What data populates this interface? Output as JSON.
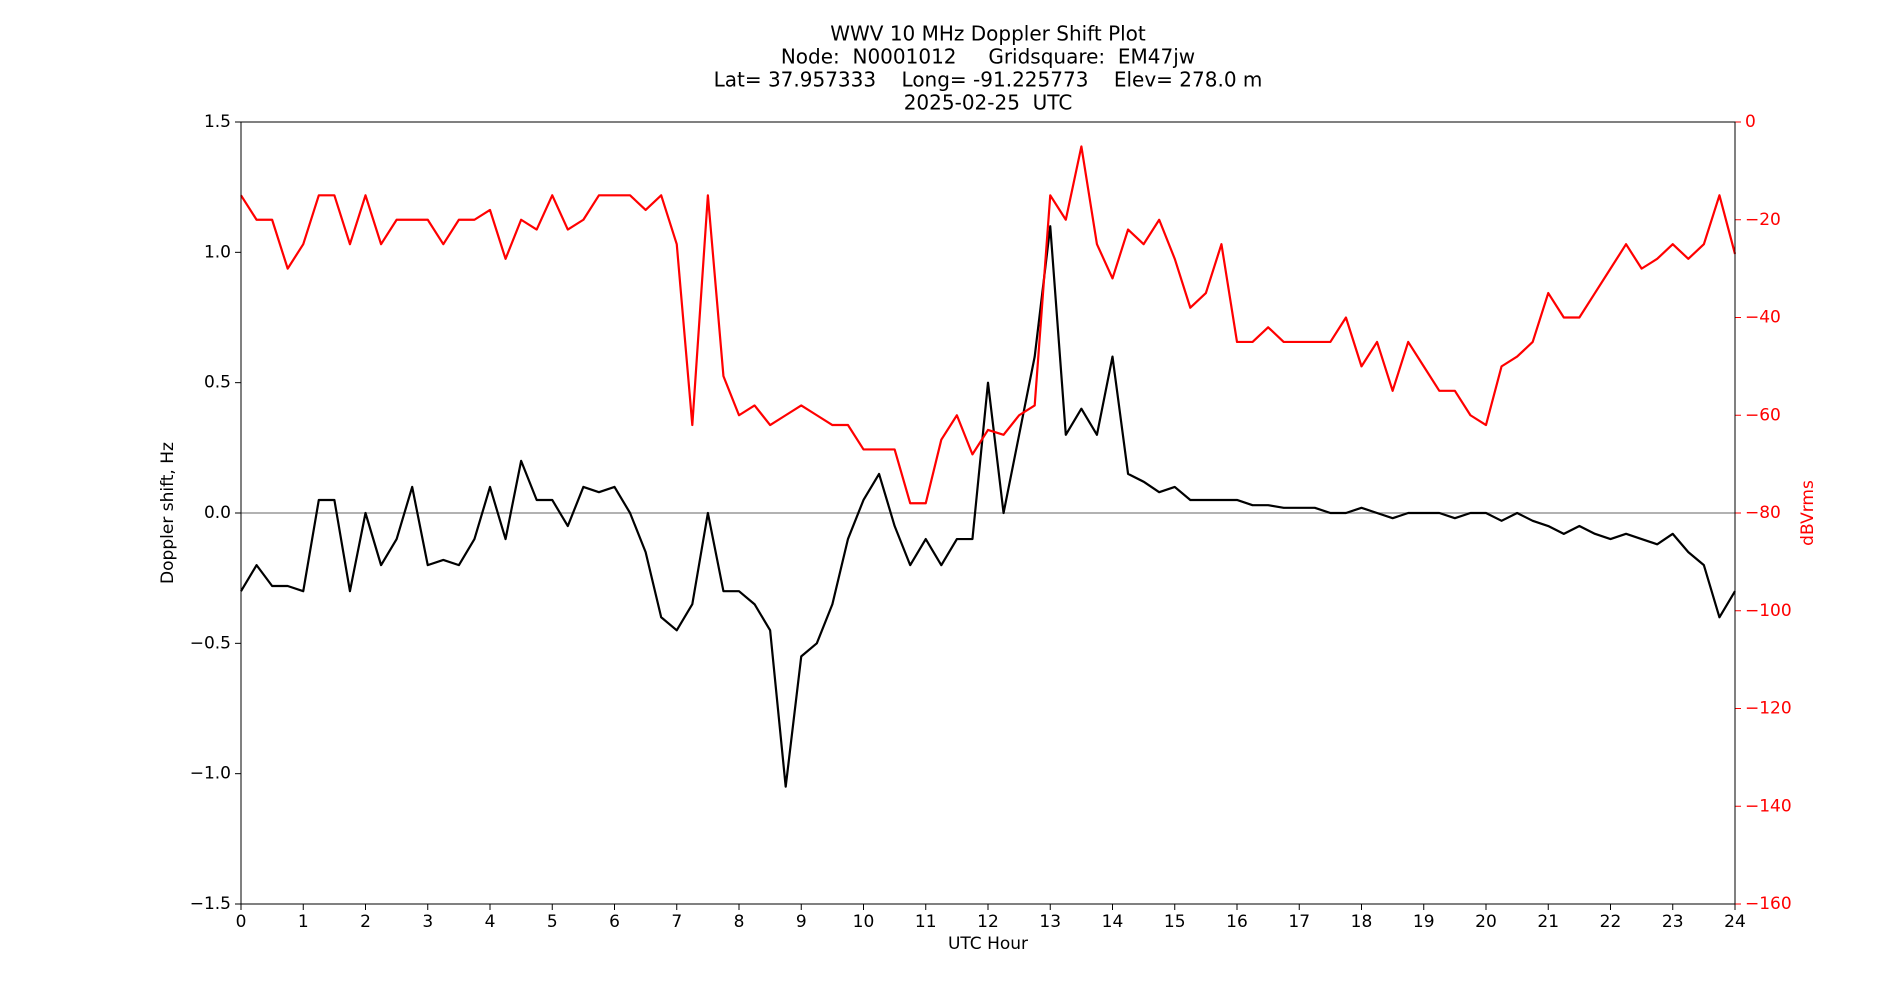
{
  "chart_data": {
    "type": "line",
    "title": [
      "WWV 10 MHz Doppler Shift Plot",
      "Node:  N0001012     Gridsquare:  EM47jw",
      "Lat= 37.957333    Long= -91.225773    Elev= 278.0 m",
      "2025-02-25  UTC"
    ],
    "xlabel": "UTC Hour",
    "ylabel": "Doppler shift, Hz",
    "y2label": "dBVrms",
    "y2color": "#ff0000",
    "axhline": 0,
    "axhline_color": "#999999",
    "x": [
      0,
      0.25,
      0.5,
      0.75,
      1,
      1.25,
      1.5,
      1.75,
      2,
      2.25,
      2.5,
      2.75,
      3,
      3.25,
      3.5,
      3.75,
      4,
      4.25,
      4.5,
      4.75,
      5,
      5.25,
      5.5,
      5.75,
      6,
      6.25,
      6.5,
      6.75,
      7,
      7.25,
      7.5,
      7.75,
      8,
      8.25,
      8.5,
      8.75,
      9,
      9.25,
      9.5,
      9.75,
      10,
      10.25,
      10.5,
      10.75,
      11,
      11.25,
      11.5,
      11.75,
      12,
      12.25,
      12.5,
      12.75,
      13,
      13.25,
      13.5,
      13.75,
      14,
      14.25,
      14.5,
      14.75,
      15,
      15.25,
      15.5,
      15.75,
      16,
      16.25,
      16.5,
      16.75,
      17,
      17.25,
      17.5,
      17.75,
      18,
      18.25,
      18.5,
      18.75,
      19,
      19.25,
      19.5,
      19.75,
      20,
      20.25,
      20.5,
      20.75,
      21,
      21.25,
      21.5,
      21.75,
      22,
      22.25,
      22.5,
      22.75,
      23,
      23.25,
      23.5,
      23.75,
      24
    ],
    "series": [
      {
        "color": "#000000",
        "values": [
          -0.3,
          -0.2,
          -0.28,
          -0.28,
          -0.3,
          0.05,
          0.05,
          -0.3,
          0.0,
          -0.2,
          -0.1,
          0.1,
          -0.2,
          -0.18,
          -0.2,
          -0.1,
          0.1,
          -0.1,
          0.2,
          0.05,
          0.05,
          -0.05,
          0.1,
          0.08,
          0.1,
          0.0,
          -0.15,
          -0.4,
          -0.45,
          -0.35,
          0.0,
          -0.3,
          -0.3,
          -0.35,
          -0.45,
          -1.05,
          -0.55,
          -0.5,
          -0.35,
          -0.1,
          0.05,
          0.15,
          -0.05,
          -0.2,
          -0.1,
          -0.2,
          -0.1,
          -0.1,
          0.5,
          0.0,
          0.3,
          0.6,
          1.1,
          0.3,
          0.4,
          0.3,
          0.6,
          0.15,
          0.12,
          0.08,
          0.1,
          0.05,
          0.05,
          0.05,
          0.05,
          0.03,
          0.03,
          0.02,
          0.02,
          0.02,
          0.0,
          0.0,
          0.02,
          0.0,
          -0.02,
          0.0,
          0.0,
          0.0,
          -0.02,
          0.0,
          0.0,
          -0.03,
          0.0,
          -0.03,
          -0.05,
          -0.08,
          -0.05,
          -0.08,
          -0.1,
          -0.08,
          -0.1,
          -0.12,
          -0.08,
          -0.15,
          -0.2,
          -0.4,
          -0.3
        ]
      },
      {
        "color": "#ff0000",
        "axis": "y2",
        "values": [
          -15,
          -20,
          -20,
          -30,
          -25,
          -15,
          -15,
          -25,
          -15,
          -25,
          -20,
          -20,
          -20,
          -25,
          -20,
          -20,
          -18,
          -28,
          -20,
          -22,
          -15,
          -22,
          -20,
          -15,
          -15,
          -15,
          -18,
          -15,
          -25,
          -62,
          -15,
          -52,
          -60,
          -58,
          -62,
          -60,
          -58,
          -60,
          -62,
          -62,
          -67,
          -67,
          -67,
          -78,
          -78,
          -65,
          -60,
          -68,
          -63,
          -64,
          -60,
          -58,
          -15,
          -20,
          -5,
          -25,
          -32,
          -22,
          -25,
          -20,
          -28,
          -38,
          -35,
          -25,
          -45,
          -45,
          -42,
          -45,
          -45,
          -45,
          -45,
          -40,
          -50,
          -45,
          -55,
          -45,
          -50,
          -55,
          -55,
          -60,
          -62,
          -50,
          -48,
          -45,
          -35,
          -40,
          -40,
          -35,
          -30,
          -25,
          -30,
          -28,
          -25,
          -28,
          -25,
          -15,
          -27
        ]
      }
    ],
    "xlim": [
      0,
      24
    ],
    "xticks": [
      0,
      1,
      2,
      3,
      4,
      5,
      6,
      7,
      8,
      9,
      10,
      11,
      12,
      13,
      14,
      15,
      16,
      17,
      18,
      19,
      20,
      21,
      22,
      23,
      24
    ],
    "ylim": [
      -1.5,
      1.5
    ],
    "yticks": [
      {
        "value": -1.5,
        "label": "−1.5"
      },
      {
        "value": -1.0,
        "label": "−1.0"
      },
      {
        "value": -0.5,
        "label": "−0.5"
      },
      {
        "value": 0,
        "label": "0.0"
      },
      {
        "value": 0.5,
        "label": "0.5"
      },
      {
        "value": 1.0,
        "label": "1.0"
      },
      {
        "value": 1.5,
        "label": "1.5"
      }
    ],
    "y2lim": [
      -160,
      0
    ],
    "y2ticks": [
      {
        "value": -160,
        "label": "−160"
      },
      {
        "value": -140,
        "label": "−140"
      },
      {
        "value": -120,
        "label": "−120"
      },
      {
        "value": -100,
        "label": "−100"
      },
      {
        "value": -80,
        "label": "−80"
      },
      {
        "value": -60,
        "label": "−60"
      },
      {
        "value": -40,
        "label": "−40"
      },
      {
        "value": -20,
        "label": "−20"
      },
      0
    ]
  }
}
